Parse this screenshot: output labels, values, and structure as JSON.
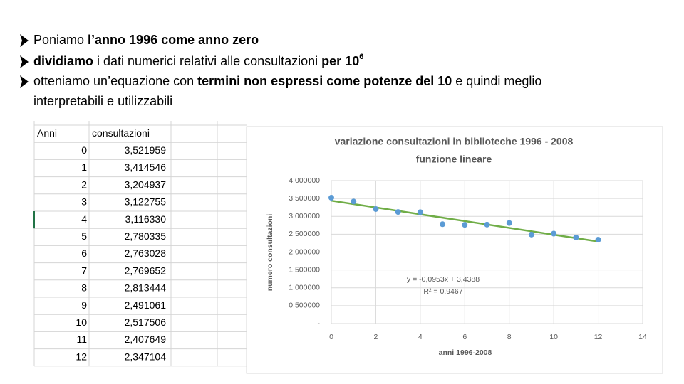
{
  "bullets": [
    {
      "segments": [
        {
          "text": "Poniamo ",
          "bold": false
        },
        {
          "text": "l’anno 1996 come anno zero",
          "bold": true
        }
      ]
    },
    {
      "segments": [
        {
          "text": "dividiamo",
          "bold": true
        },
        {
          "text": " i dati numerici relativi alle consultazioni ",
          "bold": false
        },
        {
          "text": "per 10",
          "bold": true
        }
      ],
      "superscript": "6"
    },
    {
      "segments": [
        {
          "text": "otteniamo un’equazione con ",
          "bold": false
        },
        {
          "text": "termini non espressi come potenze del 10",
          "bold": true
        },
        {
          "text": " e quindi meglio",
          "bold": false
        }
      ],
      "continuation": "interpretabili e utilizzabili"
    }
  ],
  "table": {
    "header": [
      "Anni",
      "consultazioni"
    ],
    "rows": [
      [
        0,
        "3,521959"
      ],
      [
        1,
        "3,414546"
      ],
      [
        2,
        "3,204937"
      ],
      [
        3,
        "3,122755"
      ],
      [
        4,
        "3,116330"
      ],
      [
        5,
        "2,780335"
      ],
      [
        6,
        "2,763028"
      ],
      [
        7,
        "2,769652"
      ],
      [
        8,
        "2,813444"
      ],
      [
        9,
        "2,491061"
      ],
      [
        10,
        "2,517506"
      ],
      [
        11,
        "2,407649"
      ],
      [
        12,
        "2,347104"
      ]
    ]
  },
  "chart_data": {
    "type": "scatter",
    "title": [
      "variazione consultazioni in biblioteche 1996 - 2008",
      "funzione lineare"
    ],
    "x_label": "anni 1996-2008",
    "y_label": "numero consultazioni",
    "x": [
      0,
      1,
      2,
      3,
      4,
      5,
      6,
      7,
      8,
      9,
      10,
      11,
      12
    ],
    "series": [
      {
        "name": "consultazioni",
        "color": "#5b9bd5",
        "values": [
          3.521959,
          3.414546,
          3.204937,
          3.122755,
          3.11633,
          2.780335,
          2.763028,
          2.769652,
          2.813444,
          2.491061,
          2.517506,
          2.407649,
          2.347104
        ]
      }
    ],
    "trendline": {
      "slope": -0.0953,
      "intercept": 3.4388,
      "color": "#70ad47",
      "equation": "y = -0,0953x + 3,4388",
      "r2": "R² = 0,9467"
    },
    "xlim": [
      0,
      14
    ],
    "xticks": [
      0,
      2,
      4,
      6,
      8,
      10,
      12,
      14
    ],
    "ylim": [
      0,
      4
    ],
    "yticks": [
      {
        "value": 0,
        "label": "-"
      },
      {
        "value": 0.5,
        "label": "0,500000"
      },
      {
        "value": 1,
        "label": "1,000000"
      },
      {
        "value": 1.5,
        "label": "1,500000"
      },
      {
        "value": 2,
        "label": "2,000000"
      },
      {
        "value": 2.5,
        "label": "2,500000"
      },
      {
        "value": 3,
        "label": "3,000000"
      },
      {
        "value": 3.5,
        "label": "3,500000"
      },
      {
        "value": 4,
        "label": "4,000000"
      }
    ],
    "grid": true
  }
}
